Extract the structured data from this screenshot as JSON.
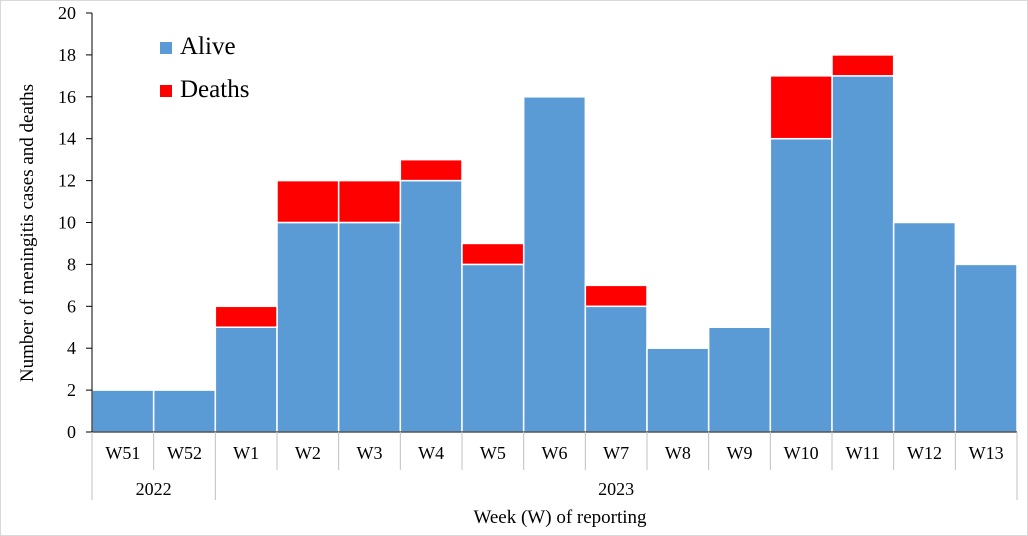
{
  "chart_data": {
    "type": "bar",
    "stacked": true,
    "categories": [
      "W51",
      "W52",
      "W1",
      "W2",
      "W3",
      "W4",
      "W5",
      "W6",
      "W7",
      "W8",
      "W9",
      "W10",
      "W11",
      "W12",
      "W13"
    ],
    "groups": [
      {
        "label": "2022",
        "categories": [
          "W51",
          "W52"
        ]
      },
      {
        "label": "2023",
        "categories": [
          "W1",
          "W2",
          "W3",
          "W4",
          "W5",
          "W6",
          "W7",
          "W8",
          "W9",
          "W10",
          "W11",
          "W12",
          "W13"
        ]
      }
    ],
    "series": [
      {
        "name": "Alive",
        "color": "#5b9bd5",
        "values": [
          2,
          2,
          5,
          10,
          10,
          12,
          8,
          16,
          6,
          4,
          5,
          14,
          17,
          10,
          8
        ]
      },
      {
        "name": "Deaths",
        "color": "#ff0000",
        "values": [
          0,
          0,
          1,
          2,
          2,
          1,
          1,
          0,
          1,
          0,
          0,
          3,
          1,
          0,
          0
        ]
      }
    ],
    "xlabel": "Week (W) of reporting",
    "ylabel": "Number of meningitis cases and deaths",
    "ylim": [
      0,
      20
    ],
    "yticks": [
      0,
      2,
      4,
      6,
      8,
      10,
      12,
      14,
      16,
      18,
      20
    ],
    "grid": false,
    "legend_position": "top-left"
  }
}
